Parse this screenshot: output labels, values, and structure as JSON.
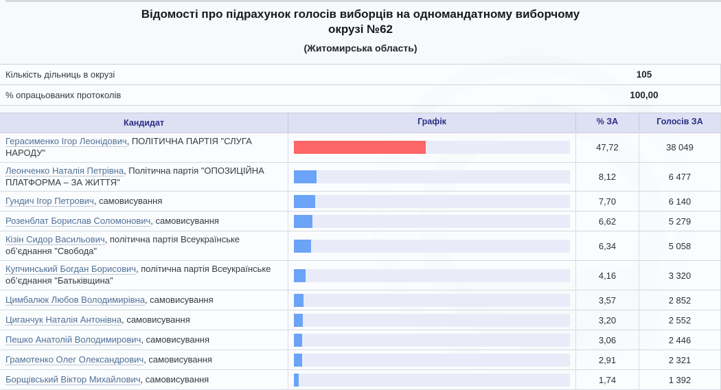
{
  "title": {
    "text": "Відомості про підрахунок голосів виборців на одномандатному виборчому окрузі №62",
    "region": "(Житомирська область)"
  },
  "summary": {
    "rows": [
      {
        "label": "Кількість дільниць в окрузі",
        "value": "105"
      },
      {
        "label": "% опрацьованих протоколів",
        "value": "100,00"
      }
    ]
  },
  "results_table": {
    "columns": {
      "candidate": "Кандидат",
      "graph": "Графік",
      "pct": "% ЗА",
      "votes": "Голосів ЗА"
    },
    "colors": {
      "leader_bar": "#fc6666",
      "bar": "#6ba3f7",
      "track": "#e9ecf8",
      "header_bg": "#dde1f3",
      "link": "#4f7096"
    },
    "rows": [
      {
        "name": "Герасименко Ігор Леонідович",
        "party": "ПОЛІТИЧНА ПАРТІЯ \"СЛУГА НАРОДУ\"",
        "pct": "47,72",
        "votes": "38 049",
        "leader": true
      },
      {
        "name": "Леонченко Наталія Петрівна",
        "party": "Політична партія \"ОПОЗИЦІЙНА ПЛАТФОРМА – ЗА ЖИТТЯ\"",
        "pct": "8,12",
        "votes": "6 477",
        "leader": false
      },
      {
        "name": "Гундич Ігор Петрович",
        "party": "самовисування",
        "pct": "7,70",
        "votes": "6 140",
        "leader": false
      },
      {
        "name": "Розенблат Борислав Соломонович",
        "party": "самовисування",
        "pct": "6,62",
        "votes": "5 279",
        "leader": false
      },
      {
        "name": "Кізін Сидор Васильович",
        "party": "політична партія Всеукраїнське об’єднання \"Свобода\"",
        "pct": "6,34",
        "votes": "5 058",
        "leader": false
      },
      {
        "name": "Купчинський Богдан Борисович",
        "party": "політична партія Всеукраїнське об’єднання \"Батьківщина\"",
        "pct": "4,16",
        "votes": "3 320",
        "leader": false
      },
      {
        "name": "Цимбалюк Любов Володимирівна",
        "party": "самовисування",
        "pct": "3,57",
        "votes": "2 852",
        "leader": false
      },
      {
        "name": "Циганчук Наталія Антонівна",
        "party": "самовисування",
        "pct": "3,20",
        "votes": "2 552",
        "leader": false
      },
      {
        "name": "Пешко Анатолій Володимирович",
        "party": "самовисування",
        "pct": "3,06",
        "votes": "2 446",
        "leader": false
      },
      {
        "name": "Грамотенко Олег Олександрович",
        "party": "самовисування",
        "pct": "2,91",
        "votes": "2 321",
        "leader": false
      },
      {
        "name": "Борщівський Віктор Михайлович",
        "party": "самовисування",
        "pct": "1,74",
        "votes": "1 392",
        "leader": false
      }
    ]
  }
}
